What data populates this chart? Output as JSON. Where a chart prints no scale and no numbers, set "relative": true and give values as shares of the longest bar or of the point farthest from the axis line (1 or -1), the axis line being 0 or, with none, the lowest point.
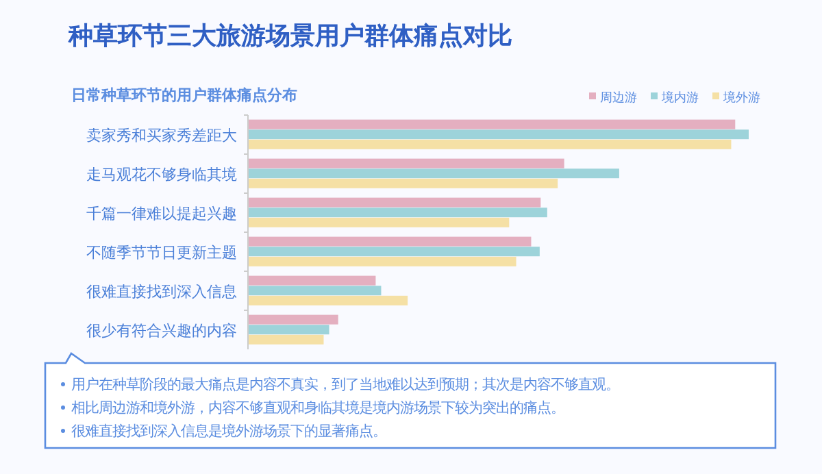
{
  "chart_data": {
    "type": "bar",
    "orientation": "horizontal",
    "relative": true,
    "title": "种草环节三大旅游场景用户群体痛点对比",
    "subtitle": "日常种草环节的用户群体痛点分布",
    "categories": [
      "卖家秀和买家秀差距大",
      "走马观花不够身临其境",
      "千篇一律难以提起兴趣",
      "不随季节节日更新主题",
      "很难直接找到深入信息",
      "很少有符合兴趣的内容"
    ],
    "series": [
      {
        "name": "周边游",
        "color": "#e4afc0",
        "values": [
          0.973,
          0.631,
          0.584,
          0.565,
          0.254,
          0.179
        ]
      },
      {
        "name": "境内游",
        "color": "#9dd3da",
        "values": [
          1,
          0.741,
          0.597,
          0.582,
          0.265,
          0.161
        ]
      },
      {
        "name": "境外游",
        "color": "#f5e0a5",
        "values": [
          0.965,
          0.618,
          0.521,
          0.535,
          0.318,
          0.15
        ]
      }
    ],
    "legend": "top right",
    "annotations": [
      "用户在种草阶段的最大痛点是内容不真实，到了当地难以达到预期；其次是内容不够直观。",
      "相比周边游和境外游，内容不够直观和身临其境是境内游场景下较为突出的痛点。",
      "很难直接找到深入信息是境外游场景下的显著痛点。"
    ]
  }
}
